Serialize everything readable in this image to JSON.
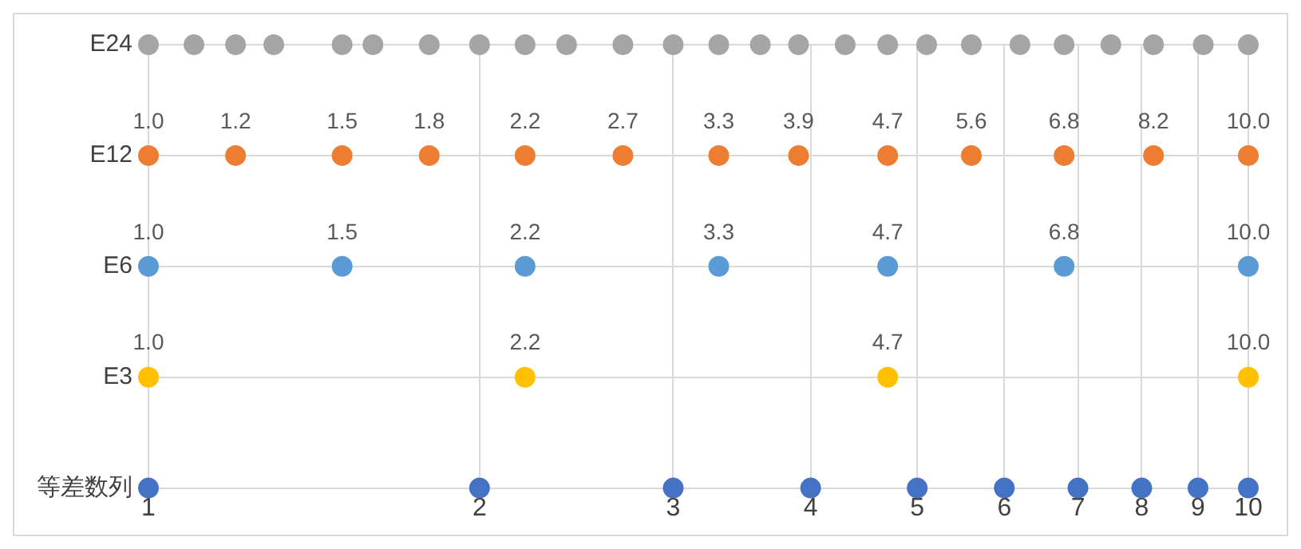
{
  "chart_data": {
    "type": "scatter",
    "orientation": "horizontal",
    "categories": [
      "E24",
      "E12",
      "E6",
      "E3",
      "等差数列"
    ],
    "xlim": [
      1,
      10
    ],
    "xticks": [
      1,
      2,
      3,
      4,
      5,
      6,
      7,
      8,
      9,
      10
    ],
    "log": "x",
    "grid": true,
    "legend": false,
    "marker": "circle",
    "series": [
      {
        "color": "#a5a5a5",
        "x": [
          "E24",
          "E24",
          "E24",
          "E24",
          "E24",
          "E24",
          "E24",
          "E24",
          "E24",
          "E24",
          "E24",
          "E24",
          "E24",
          "E24",
          "E24",
          "E24",
          "E24",
          "E24",
          "E24",
          "E24",
          "E24",
          "E24",
          "E24",
          "E24",
          "E24"
        ],
        "values": [
          1.0,
          1.1,
          1.2,
          1.3,
          1.5,
          1.6,
          1.8,
          2.0,
          2.2,
          2.4,
          2.7,
          3.0,
          3.3,
          3.6,
          3.9,
          4.3,
          4.7,
          5.1,
          5.6,
          6.2,
          6.8,
          7.5,
          8.2,
          9.1,
          10.0
        ]
      },
      {
        "color": "#ed7d31",
        "x": [
          "E12",
          "E12",
          "E12",
          "E12",
          "E12",
          "E12",
          "E12",
          "E12",
          "E12",
          "E12",
          "E12",
          "E12",
          "E12"
        ],
        "values": [
          1.0,
          1.2,
          1.5,
          1.8,
          2.2,
          2.7,
          3.3,
          3.9,
          4.7,
          5.6,
          6.8,
          8.2,
          10.0
        ],
        "value_labels": [
          "1.0",
          "1.2",
          "1.5",
          "1.8",
          "2.2",
          "2.7",
          "3.3",
          "3.9",
          "4.7",
          "5.6",
          "6.8",
          "8.2",
          "10.0"
        ]
      },
      {
        "color": "#5b9bd5",
        "x": [
          "E6",
          "E6",
          "E6",
          "E6",
          "E6",
          "E6",
          "E6"
        ],
        "values": [
          1.0,
          1.5,
          2.2,
          3.3,
          4.7,
          6.8,
          10.0
        ],
        "value_labels": [
          "1.0",
          "1.5",
          "2.2",
          "3.3",
          "4.7",
          "6.8",
          "10.0"
        ]
      },
      {
        "color": "#ffc000",
        "x": [
          "E3",
          "E3",
          "E3",
          "E3"
        ],
        "values": [
          1.0,
          2.2,
          4.7,
          10.0
        ],
        "value_labels": [
          "1.0",
          "2.2",
          "4.7",
          "10.0"
        ]
      },
      {
        "color": "#4472c4",
        "x": [
          "等差数列",
          "等差数列",
          "等差数列",
          "等差数列",
          "等差数列",
          "等差数列",
          "等差数列",
          "等差数列",
          "等差数列",
          "等差数列"
        ],
        "values": [
          1,
          2,
          3,
          4,
          5,
          6,
          7,
          8,
          9,
          10
        ]
      }
    ]
  }
}
